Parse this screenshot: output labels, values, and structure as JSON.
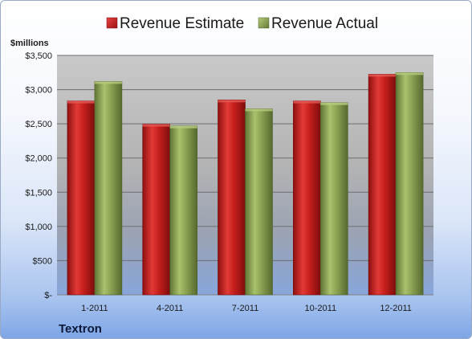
{
  "chart_data": {
    "type": "bar",
    "ylabel": "$millions",
    "categories": [
      "1-2011",
      "4-2011",
      "7-2011",
      "10-2011",
      "12-2011"
    ],
    "series": [
      {
        "name": "Revenue Estimate",
        "values": [
          2835,
          2495,
          2850,
          2835,
          3225
        ],
        "color": "#c0201f"
      },
      {
        "name": "Revenue Actual",
        "values": [
          3120,
          2470,
          2720,
          2810,
          3250
        ],
        "color": "#8fa655"
      }
    ],
    "ylim": [
      0,
      3500
    ],
    "yticks": [
      0,
      500,
      1000,
      1500,
      2000,
      2500,
      3000,
      3500
    ],
    "ytick_labels": [
      "$-",
      "$500",
      "$1,000",
      "$1,500",
      "$2,000",
      "$2,500",
      "$3,000",
      "$3,500"
    ],
    "grid": true,
    "legend_position": "top"
  },
  "footer": {
    "label": "Textron"
  }
}
